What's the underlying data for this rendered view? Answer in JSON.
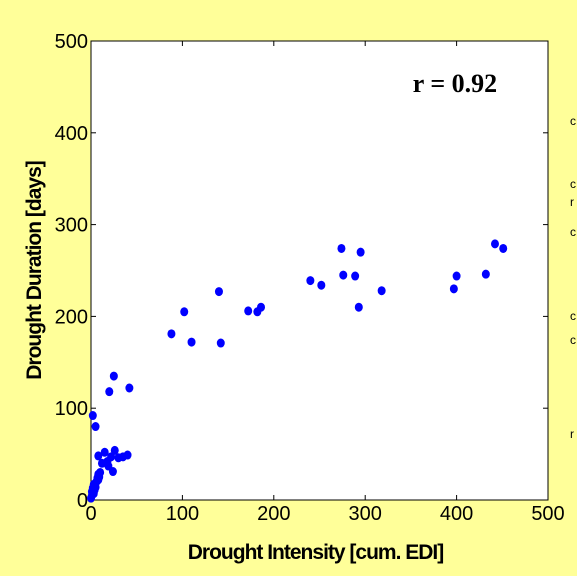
{
  "chart_data": {
    "type": "scatter",
    "title": "",
    "xlabel": "Drought Intensity [cum. EDI]",
    "ylabel": "Drought Duration [days]",
    "xlim": [
      0,
      500
    ],
    "ylim": [
      0,
      500
    ],
    "xticks": [
      "0",
      "100",
      "200",
      "300",
      "400",
      "500"
    ],
    "yticks": [
      "0",
      "100",
      "200",
      "300",
      "400",
      "500"
    ],
    "grid": false,
    "annotation": "r = 0.92",
    "marker_color": "#0000ff",
    "points": [
      {
        "x": 0,
        "y": 2
      },
      {
        "x": 1,
        "y": 5
      },
      {
        "x": 1,
        "y": 9
      },
      {
        "x": 2,
        "y": 13
      },
      {
        "x": 3,
        "y": 7
      },
      {
        "x": 3,
        "y": 17
      },
      {
        "x": 4,
        "y": 11
      },
      {
        "x": 5,
        "y": 14
      },
      {
        "x": 6,
        "y": 20
      },
      {
        "x": 7,
        "y": 24
      },
      {
        "x": 8,
        "y": 28
      },
      {
        "x": 8,
        "y": 22
      },
      {
        "x": 9,
        "y": 25
      },
      {
        "x": 10,
        "y": 30
      },
      {
        "x": 2,
        "y": 92
      },
      {
        "x": 5,
        "y": 80
      },
      {
        "x": 8,
        "y": 48
      },
      {
        "x": 12,
        "y": 40
      },
      {
        "x": 15,
        "y": 52
      },
      {
        "x": 18,
        "y": 42
      },
      {
        "x": 19,
        "y": 37
      },
      {
        "x": 20,
        "y": 118
      },
      {
        "x": 22,
        "y": 47
      },
      {
        "x": 24,
        "y": 31
      },
      {
        "x": 25,
        "y": 135
      },
      {
        "x": 26,
        "y": 54
      },
      {
        "x": 30,
        "y": 46
      },
      {
        "x": 35,
        "y": 47
      },
      {
        "x": 40,
        "y": 49
      },
      {
        "x": 42,
        "y": 122
      },
      {
        "x": 88,
        "y": 181
      },
      {
        "x": 102,
        "y": 205
      },
      {
        "x": 110,
        "y": 172
      },
      {
        "x": 140,
        "y": 227
      },
      {
        "x": 142,
        "y": 171
      },
      {
        "x": 172,
        "y": 206
      },
      {
        "x": 182,
        "y": 205
      },
      {
        "x": 186,
        "y": 210
      },
      {
        "x": 240,
        "y": 239
      },
      {
        "x": 252,
        "y": 234
      },
      {
        "x": 274,
        "y": 274
      },
      {
        "x": 276,
        "y": 245
      },
      {
        "x": 289,
        "y": 244
      },
      {
        "x": 293,
        "y": 210
      },
      {
        "x": 295,
        "y": 270
      },
      {
        "x": 318,
        "y": 228
      },
      {
        "x": 397,
        "y": 230
      },
      {
        "x": 400,
        "y": 244
      },
      {
        "x": 432,
        "y": 246
      },
      {
        "x": 442,
        "y": 279
      },
      {
        "x": 451,
        "y": 274
      }
    ]
  },
  "edge_marks": [
    "c",
    "c",
    "r",
    "c",
    "c",
    "c",
    "r"
  ]
}
